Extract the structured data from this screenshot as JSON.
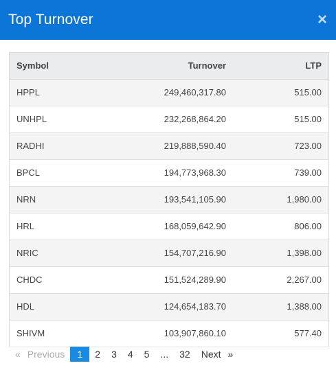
{
  "modal": {
    "title": "Top Turnover",
    "close_symbol": "×"
  },
  "table": {
    "headers": {
      "symbol": "Symbol",
      "turnover": "Turnover",
      "ltp": "LTP"
    },
    "rows": [
      {
        "symbol": "HPPL",
        "turnover": "249,460,317.80",
        "ltp": "515.00"
      },
      {
        "symbol": "UNHPL",
        "turnover": "232,268,864.20",
        "ltp": "515.00"
      },
      {
        "symbol": "RADHI",
        "turnover": "219,888,590.40",
        "ltp": "723.00"
      },
      {
        "symbol": "BPCL",
        "turnover": "194,773,968.30",
        "ltp": "739.00"
      },
      {
        "symbol": "NRN",
        "turnover": "193,541,105.90",
        "ltp": "1,980.00"
      },
      {
        "symbol": "HRL",
        "turnover": "168,059,642.90",
        "ltp": "806.00"
      },
      {
        "symbol": "NRIC",
        "turnover": "154,707,216.90",
        "ltp": "1,398.00"
      },
      {
        "symbol": "CHDC",
        "turnover": "151,524,289.90",
        "ltp": "2,267.00"
      },
      {
        "symbol": "HDL",
        "turnover": "124,654,183.70",
        "ltp": "1,388.00"
      },
      {
        "symbol": "SHIVM",
        "turnover": "103,907,860.10",
        "ltp": "577.40"
      }
    ]
  },
  "pagination": {
    "prev_arrow": "«",
    "prev_label": "Previous",
    "pages": [
      "1",
      "2",
      "3",
      "4",
      "5",
      "...",
      "32"
    ],
    "active_page": "1",
    "next_label": "Next",
    "next_arrow": "»"
  }
}
